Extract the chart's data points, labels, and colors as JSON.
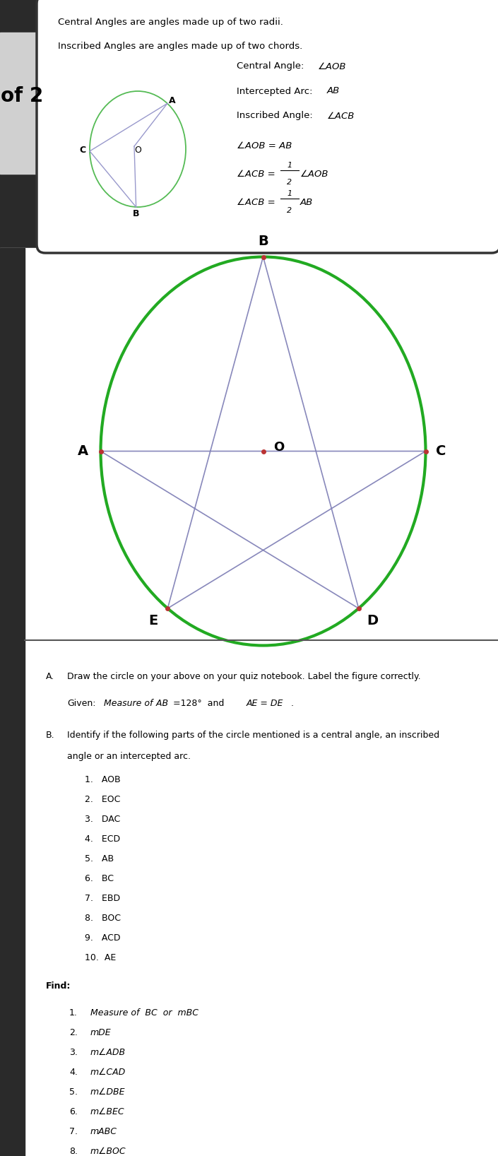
{
  "fig_w": 7.05,
  "fig_h": 16.36,
  "bg_color": "#2a2a2a",
  "white_color": "#ffffff",
  "of2_tab_color": "#d0d0d0",
  "of2_text": "of 2",
  "box_line1": "Central Angles are angles made up of two radii.",
  "box_line2": "Inscribed Angles are angles made up of two chords.",
  "circle_color_small": "#5aaa55",
  "circle_color_big": "#22aa22",
  "star_color": "#8888bb",
  "dot_color": "#bb3333",
  "right_texts": [
    "Central Angle:  ∠AOB",
    "Intercepted Arc:  AB",
    "Inscribed Angle:  ∠ACB",
    "∠AOB = AB",
    "∠ACB = 1/2 ∠AOB",
    "∠ACB = 1/2 AB"
  ]
}
